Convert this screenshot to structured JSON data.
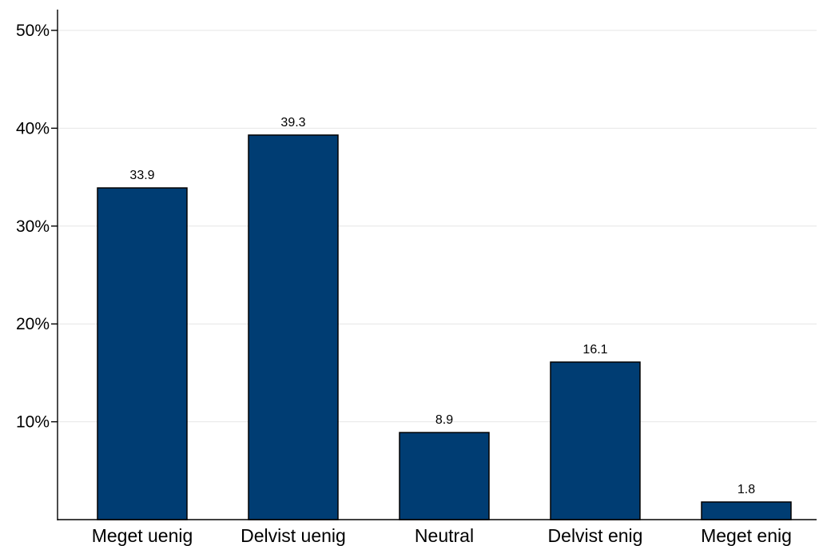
{
  "chart_data": {
    "type": "bar",
    "categories": [
      "Meget uenig",
      "Delvist uenig",
      "Neutral",
      "Delvist enig",
      "Meget enig"
    ],
    "values": [
      33.9,
      39.3,
      8.9,
      16.1,
      1.8
    ],
    "value_labels": [
      "33.9",
      "39.3",
      "8.9",
      "16.1",
      "1.8"
    ],
    "title": "",
    "xlabel": "",
    "ylabel": "",
    "ylim": [
      0,
      50
    ],
    "yticks": [
      10,
      20,
      30,
      40,
      50
    ],
    "ytick_labels": [
      "10%",
      "20%",
      "30%",
      "40%",
      "50%"
    ],
    "grid": true,
    "bar_color": "#003d73",
    "edge_color": "#000000",
    "grid_color": "#e6e6e6"
  }
}
